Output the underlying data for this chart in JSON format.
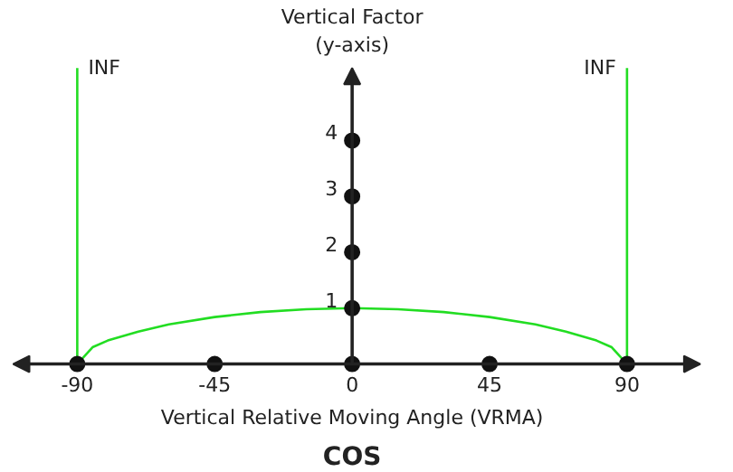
{
  "chart_data": {
    "type": "line",
    "title": "COS",
    "xlabel": "Vertical Relative Moving Angle (VRMA)",
    "ylabel": "Vertical Factor\n(y-axis)",
    "xlim": [
      -111,
      114
    ],
    "ylim": [
      0,
      5.3
    ],
    "xticks": [
      -90,
      -45,
      0,
      45,
      90
    ],
    "yticks": [
      1,
      2,
      3,
      4
    ],
    "marker": "none",
    "line_style": "solid",
    "series": [
      {
        "color": "#22dd22",
        "x": [
          -90,
          -85,
          -80,
          -70,
          -60,
          -45,
          -30,
          -15,
          0,
          15,
          30,
          45,
          60,
          70,
          80,
          85,
          90
        ],
        "values": [
          0,
          0.3,
          0.42,
          0.58,
          0.71,
          0.84,
          0.93,
          0.98,
          1,
          0.98,
          0.93,
          0.84,
          0.71,
          0.58,
          0.42,
          0.3,
          0
        ]
      },
      {
        "color": "#22dd22",
        "x": [
          -90,
          -90,
          -90,
          -90,
          -90,
          -90,
          -90
        ],
        "values": [
          0,
          1,
          2,
          3,
          4,
          5,
          5.3
        ]
      },
      {
        "color": "#22dd22",
        "x": [
          90,
          90,
          90,
          90,
          90,
          90,
          90
        ],
        "values": [
          0,
          1,
          2,
          3,
          4,
          5,
          5.3
        ]
      },
      {
        "type": "scatter",
        "marker": "circle",
        "color": "#111111",
        "x": [
          -90,
          -45,
          0,
          45,
          90,
          0,
          0,
          0,
          0
        ],
        "values": [
          0,
          0,
          0,
          0,
          0,
          1,
          2,
          3,
          4
        ]
      }
    ],
    "annotations": [
      "INF",
      "INF"
    ]
  }
}
